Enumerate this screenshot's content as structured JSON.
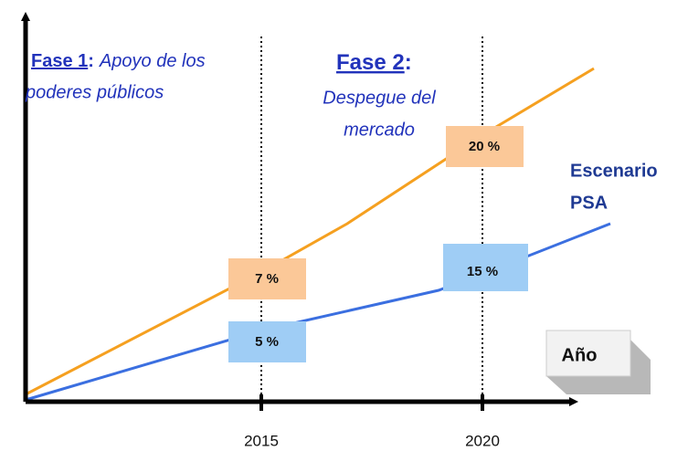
{
  "phase1": {
    "title": "Fase 1",
    "separator": ":",
    "lines": [
      "Apoyo de los",
      "poderes públicos"
    ]
  },
  "phase2": {
    "title": "Fase 2",
    "separator": ":",
    "lines": [
      "Despegue del",
      "mercado"
    ]
  },
  "scenario": {
    "lines": [
      "Escenario",
      "PSA"
    ]
  },
  "labels": {
    "orange_2015": "7 %",
    "orange_2020": "20 %",
    "blue_2015": "5 %",
    "blue_2020": "15 %"
  },
  "axis": {
    "x_label": "Año",
    "ticks": [
      "2015",
      "2020"
    ]
  }
}
